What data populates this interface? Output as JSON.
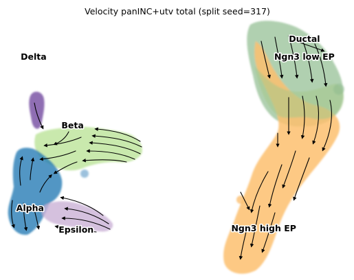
{
  "chart_data": {
    "type": "scatter",
    "title": "Velocity panINC+utv total (split seed=317)",
    "xlabel": "",
    "ylabel": "",
    "grid": false,
    "legend": "on data",
    "overlay": "velocity stream arrows",
    "series": [
      {
        "name": "Delta",
        "color": "#6a3d9a",
        "label_pos": [
          0.095,
          0.855
        ]
      },
      {
        "name": "Beta",
        "color": "#b2df8a",
        "label_pos": [
          0.205,
          0.585
        ]
      },
      {
        "name": "Alpha",
        "color": "#1f78b4",
        "label_pos": [
          0.085,
          0.26
        ]
      },
      {
        "name": "Epsilon",
        "color": "#cab2d6",
        "label_pos": [
          0.215,
          0.175
        ]
      },
      {
        "name": "Ductal",
        "color": "#8fbc8f",
        "label_pos": [
          0.86,
          0.925
        ]
      },
      {
        "name": "Ngn3 low EP",
        "color": "#a6c98a",
        "label_pos": [
          0.86,
          0.855
        ]
      },
      {
        "name": "Ngn3 high EP",
        "color": "#fdbf6f",
        "label_pos": [
          0.745,
          0.18
        ]
      }
    ]
  }
}
